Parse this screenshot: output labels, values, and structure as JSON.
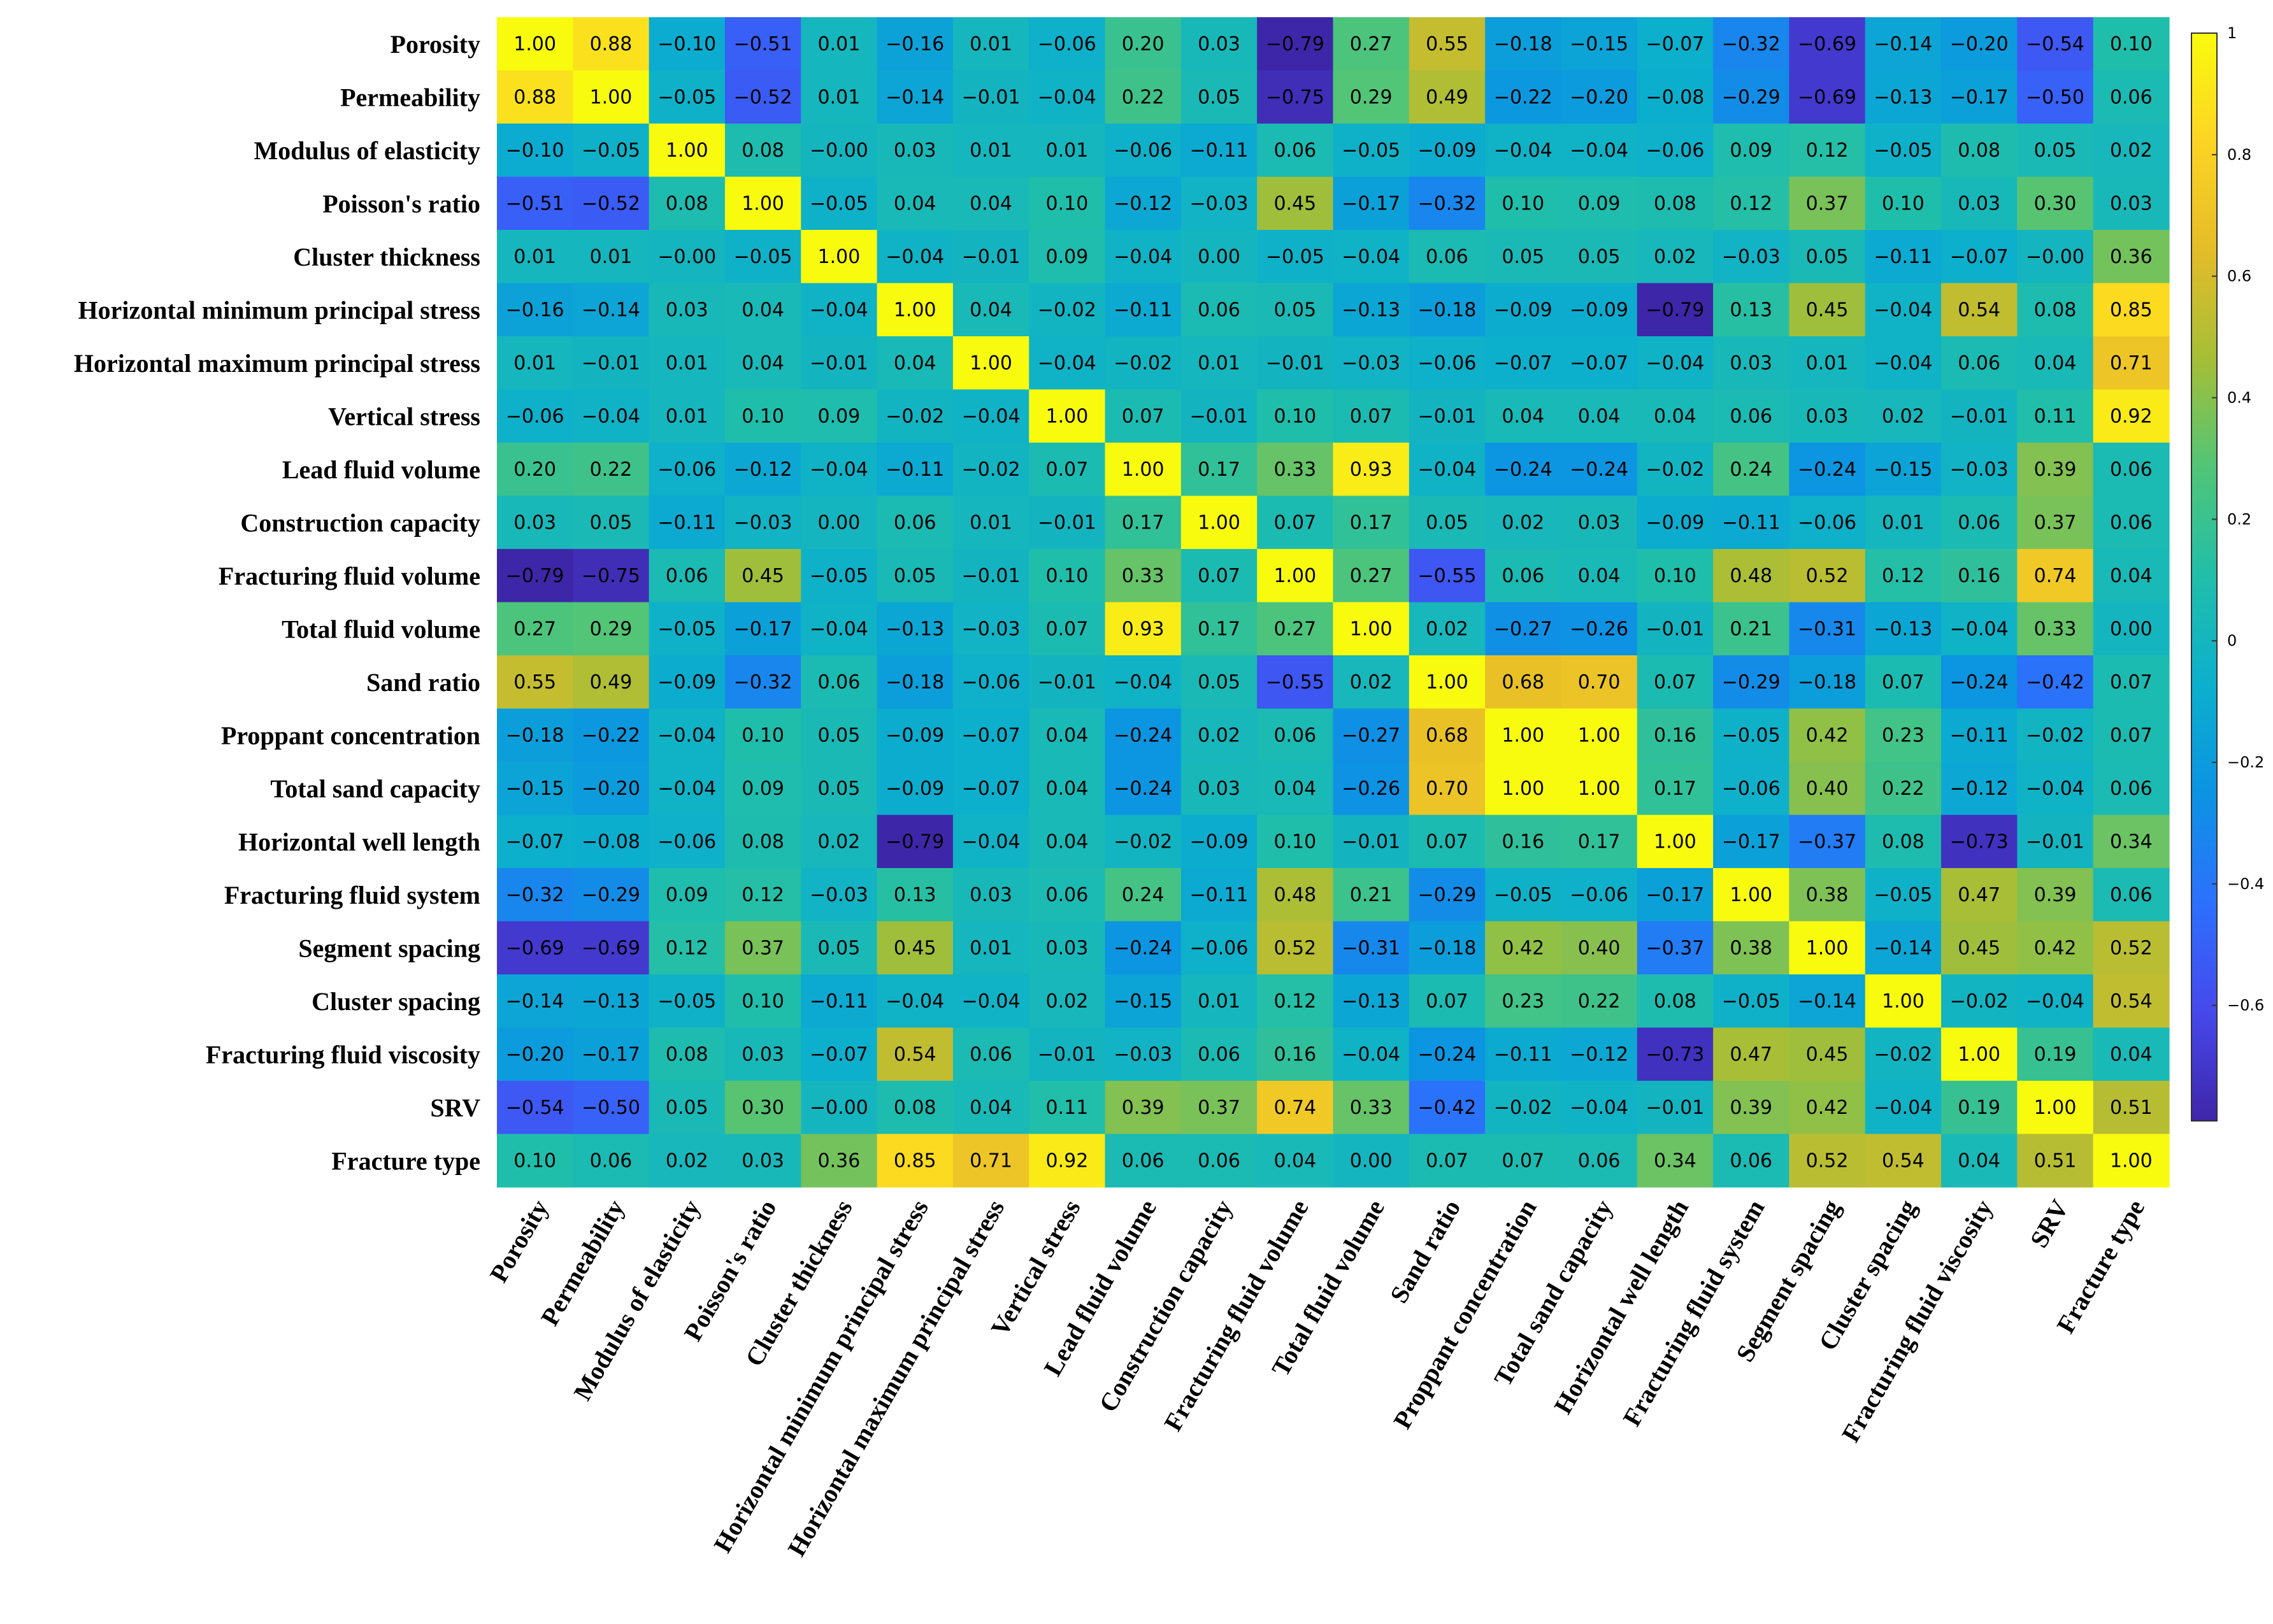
{
  "chart_data": {
    "type": "heatmap",
    "title": "",
    "xlabel": "",
    "ylabel": "",
    "labels": [
      "Porosity",
      "Permeability",
      "Modulus of elasticity",
      "Poisson's ratio",
      "Cluster thickness",
      "Horizontal minimum principal stress",
      "Horizontal maximum principal stress",
      "Vertical stress",
      "Lead fluid volume",
      "Construction capacity",
      "Fracturing fluid volume",
      "Total fluid volume",
      "Sand ratio",
      "Proppant concentration",
      "Total sand capacity",
      "Horizontal well length",
      "Fracturing fluid system",
      "Segment spacing",
      "Cluster spacing",
      "Fracturing fluid viscosity",
      "SRV",
      "Fracture type"
    ],
    "values": [
      [
        1.0,
        0.88,
        -0.1,
        -0.51,
        0.01,
        -0.16,
        0.01,
        -0.06,
        0.2,
        0.03,
        -0.79,
        0.27,
        0.55,
        -0.18,
        -0.15,
        -0.07,
        -0.32,
        -0.69,
        -0.14,
        -0.2,
        -0.54,
        0.1
      ],
      [
        0.88,
        1.0,
        -0.05,
        -0.52,
        0.01,
        -0.14,
        -0.01,
        -0.04,
        0.22,
        0.05,
        -0.75,
        0.29,
        0.49,
        -0.22,
        -0.2,
        -0.08,
        -0.29,
        -0.69,
        -0.13,
        -0.17,
        -0.5,
        0.06
      ],
      [
        -0.1,
        -0.05,
        1.0,
        0.08,
        -0.0,
        0.03,
        0.01,
        0.01,
        -0.06,
        -0.11,
        0.06,
        -0.05,
        -0.09,
        -0.04,
        -0.04,
        -0.06,
        0.09,
        0.12,
        -0.05,
        0.08,
        0.05,
        0.02
      ],
      [
        -0.51,
        -0.52,
        0.08,
        1.0,
        -0.05,
        0.04,
        0.04,
        0.1,
        -0.12,
        -0.03,
        0.45,
        -0.17,
        -0.32,
        0.1,
        0.09,
        0.08,
        0.12,
        0.37,
        0.1,
        0.03,
        0.3,
        0.03
      ],
      [
        0.01,
        0.01,
        -0.0,
        -0.05,
        1.0,
        -0.04,
        -0.01,
        0.09,
        -0.04,
        0.0,
        -0.05,
        -0.04,
        0.06,
        0.05,
        0.05,
        0.02,
        -0.03,
        0.05,
        -0.11,
        -0.07,
        -0.0,
        0.36
      ],
      [
        -0.16,
        -0.14,
        0.03,
        0.04,
        -0.04,
        1.0,
        0.04,
        -0.02,
        -0.11,
        0.06,
        0.05,
        -0.13,
        -0.18,
        -0.09,
        -0.09,
        -0.79,
        0.13,
        0.45,
        -0.04,
        0.54,
        0.08,
        0.85
      ],
      [
        0.01,
        -0.01,
        0.01,
        0.04,
        -0.01,
        0.04,
        1.0,
        -0.04,
        -0.02,
        0.01,
        -0.01,
        -0.03,
        -0.06,
        -0.07,
        -0.07,
        -0.04,
        0.03,
        0.01,
        -0.04,
        0.06,
        0.04,
        0.71
      ],
      [
        -0.06,
        -0.04,
        0.01,
        0.1,
        0.09,
        -0.02,
        -0.04,
        1.0,
        0.07,
        -0.01,
        0.1,
        0.07,
        -0.01,
        0.04,
        0.04,
        0.04,
        0.06,
        0.03,
        0.02,
        -0.01,
        0.11,
        0.92
      ],
      [
        0.2,
        0.22,
        -0.06,
        -0.12,
        -0.04,
        -0.11,
        -0.02,
        0.07,
        1.0,
        0.17,
        0.33,
        0.93,
        -0.04,
        -0.24,
        -0.24,
        -0.02,
        0.24,
        -0.24,
        -0.15,
        -0.03,
        0.39,
        0.06
      ],
      [
        0.03,
        0.05,
        -0.11,
        -0.03,
        0.0,
        0.06,
        0.01,
        -0.01,
        0.17,
        1.0,
        0.07,
        0.17,
        0.05,
        0.02,
        0.03,
        -0.09,
        -0.11,
        -0.06,
        0.01,
        0.06,
        0.37,
        0.06
      ],
      [
        -0.79,
        -0.75,
        0.06,
        0.45,
        -0.05,
        0.05,
        -0.01,
        0.1,
        0.33,
        0.07,
        1.0,
        0.27,
        -0.55,
        0.06,
        0.04,
        0.1,
        0.48,
        0.52,
        0.12,
        0.16,
        0.74,
        0.04
      ],
      [
        0.27,
        0.29,
        -0.05,
        -0.17,
        -0.04,
        -0.13,
        -0.03,
        0.07,
        0.93,
        0.17,
        0.27,
        1.0,
        0.02,
        -0.27,
        -0.26,
        -0.01,
        0.21,
        -0.31,
        -0.13,
        -0.04,
        0.33,
        0.0
      ],
      [
        0.55,
        0.49,
        -0.09,
        -0.32,
        0.06,
        -0.18,
        -0.06,
        -0.01,
        -0.04,
        0.05,
        -0.55,
        0.02,
        1.0,
        0.68,
        0.7,
        0.07,
        -0.29,
        -0.18,
        0.07,
        -0.24,
        -0.42,
        0.07
      ],
      [
        -0.18,
        -0.22,
        -0.04,
        0.1,
        0.05,
        -0.09,
        -0.07,
        0.04,
        -0.24,
        0.02,
        0.06,
        -0.27,
        0.68,
        1.0,
        1.0,
        0.16,
        -0.05,
        0.42,
        0.23,
        -0.11,
        -0.02,
        0.07
      ],
      [
        -0.15,
        -0.2,
        -0.04,
        0.09,
        0.05,
        -0.09,
        -0.07,
        0.04,
        -0.24,
        0.03,
        0.04,
        -0.26,
        0.7,
        1.0,
        1.0,
        0.17,
        -0.06,
        0.4,
        0.22,
        -0.12,
        -0.04,
        0.06
      ],
      [
        -0.07,
        -0.08,
        -0.06,
        0.08,
        0.02,
        -0.79,
        -0.04,
        0.04,
        -0.02,
        -0.09,
        0.1,
        -0.01,
        0.07,
        0.16,
        0.17,
        1.0,
        -0.17,
        -0.37,
        0.08,
        -0.73,
        -0.01,
        0.34
      ],
      [
        -0.32,
        -0.29,
        0.09,
        0.12,
        -0.03,
        0.13,
        0.03,
        0.06,
        0.24,
        -0.11,
        0.48,
        0.21,
        -0.29,
        -0.05,
        -0.06,
        -0.17,
        1.0,
        0.38,
        -0.05,
        0.47,
        0.39,
        0.06
      ],
      [
        -0.69,
        -0.69,
        0.12,
        0.37,
        0.05,
        0.45,
        0.01,
        0.03,
        -0.24,
        -0.06,
        0.52,
        -0.31,
        -0.18,
        0.42,
        0.4,
        -0.37,
        0.38,
        1.0,
        -0.14,
        0.45,
        0.42,
        0.52
      ],
      [
        -0.14,
        -0.13,
        -0.05,
        0.1,
        -0.11,
        -0.04,
        -0.04,
        0.02,
        -0.15,
        0.01,
        0.12,
        -0.13,
        0.07,
        0.23,
        0.22,
        0.08,
        -0.05,
        -0.14,
        1.0,
        -0.02,
        -0.04,
        0.54
      ],
      [
        -0.2,
        -0.17,
        0.08,
        0.03,
        -0.07,
        0.54,
        0.06,
        -0.01,
        -0.03,
        0.06,
        0.16,
        -0.04,
        -0.24,
        -0.11,
        -0.12,
        -0.73,
        0.47,
        0.45,
        -0.02,
        1.0,
        0.19,
        0.04
      ],
      [
        -0.54,
        -0.5,
        0.05,
        0.3,
        -0.0,
        0.08,
        0.04,
        0.11,
        0.39,
        0.37,
        0.74,
        0.33,
        -0.42,
        -0.02,
        -0.04,
        -0.01,
        0.39,
        0.42,
        -0.04,
        0.19,
        1.0,
        0.51
      ],
      [
        0.1,
        0.06,
        0.02,
        0.03,
        0.36,
        0.85,
        0.71,
        0.92,
        0.06,
        0.06,
        0.04,
        0.0,
        0.07,
        0.07,
        0.06,
        0.34,
        0.06,
        0.52,
        0.54,
        0.04,
        0.51,
        1.0
      ]
    ],
    "value_format": "2-decimal",
    "colormap": "parula",
    "colorbar": {
      "range": [
        -0.79,
        1.0
      ],
      "ticks": [
        1,
        0.8,
        0.6,
        0.4,
        0.2,
        0,
        -0.2,
        -0.4,
        -0.6
      ],
      "tick_labels": [
        "1",
        "0.8",
        "0.6",
        "0.4",
        "0.2",
        "0",
        "−0.2",
        "−0.4",
        "−0.6"
      ]
    }
  }
}
